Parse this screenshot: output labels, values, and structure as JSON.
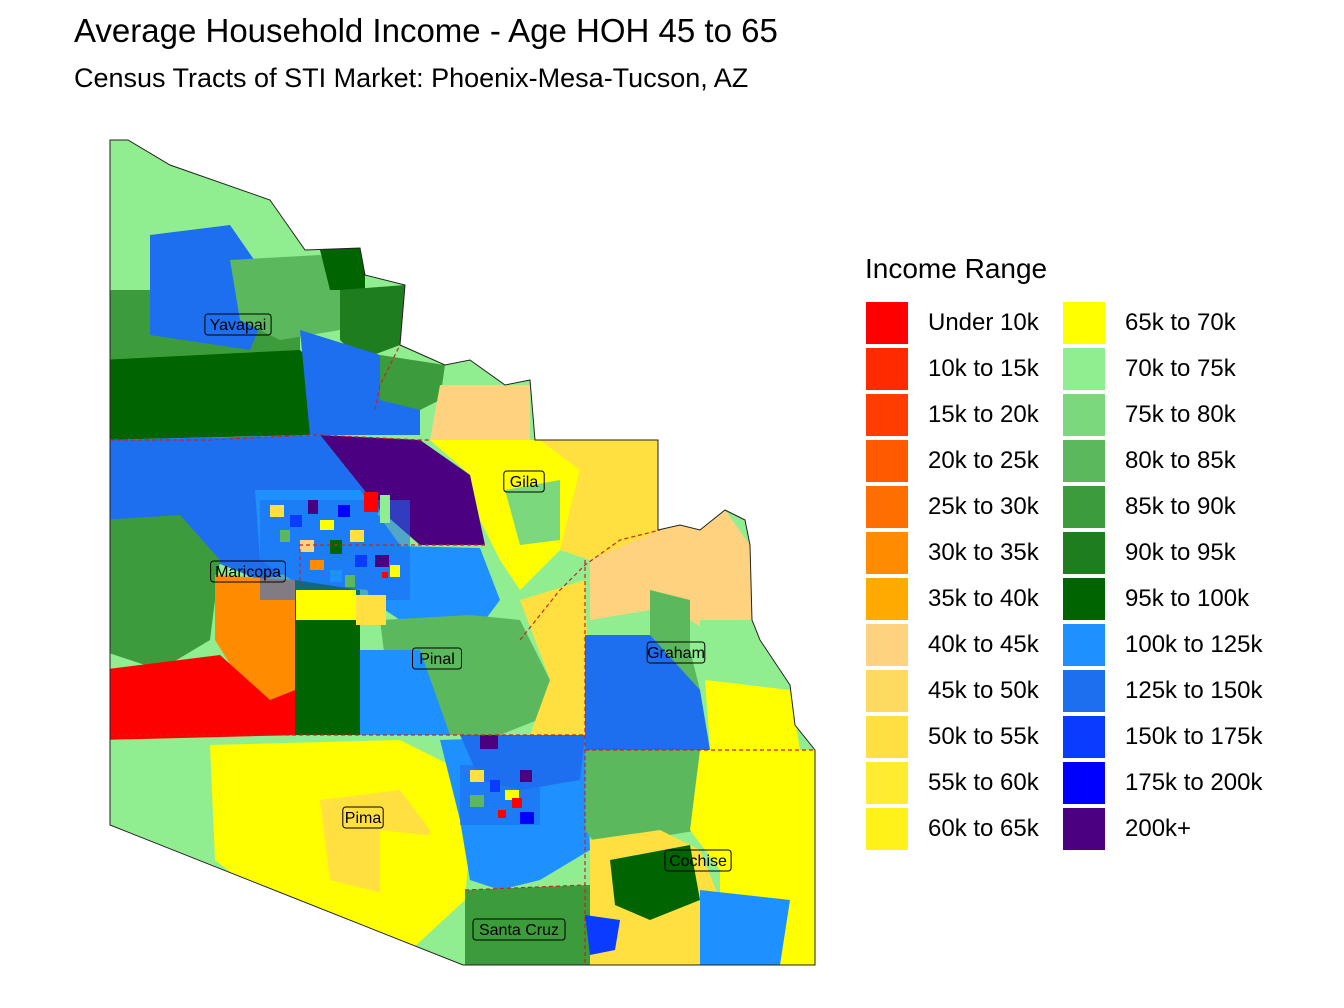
{
  "title": "Average Household Income - Age HOH 45 to 65",
  "subtitle": "Census Tracts of STI Market: Phoenix-Mesa-Tucson, AZ",
  "legend": {
    "title": "Income Range",
    "items": [
      {
        "label": "Under 10k",
        "color": "#FF0000"
      },
      {
        "label": "10k to 15k",
        "color": "#FF2A00"
      },
      {
        "label": "15k to 20k",
        "color": "#FF3D00"
      },
      {
        "label": "20k to 25k",
        "color": "#FF5A00"
      },
      {
        "label": "25k to 30k",
        "color": "#FF6E00"
      },
      {
        "label": "30k to 35k",
        "color": "#FF8C00"
      },
      {
        "label": "35k to 40k",
        "color": "#FFAA00"
      },
      {
        "label": "40k to 45k",
        "color": "#FFD27F"
      },
      {
        "label": "45k to 50k",
        "color": "#FFDA60"
      },
      {
        "label": "50k to 55k",
        "color": "#FFE040"
      },
      {
        "label": "55k to 60k",
        "color": "#FFEB30"
      },
      {
        "label": "60k to 65k",
        "color": "#FFF21A"
      },
      {
        "label": "65k to 70k",
        "color": "#FFFF00"
      },
      {
        "label": "70k to 75k",
        "color": "#90EE90"
      },
      {
        "label": "75k to 80k",
        "color": "#7CD87C"
      },
      {
        "label": "80k to 85k",
        "color": "#5CB85C"
      },
      {
        "label": "85k to 90k",
        "color": "#3C9C3C"
      },
      {
        "label": "90k to 95k",
        "color": "#1E7E1E"
      },
      {
        "label": "95k to 100k",
        "color": "#006400"
      },
      {
        "label": "100k to 125k",
        "color": "#1E90FF"
      },
      {
        "label": "125k to 150k",
        "color": "#1E6EF0"
      },
      {
        "label": "150k to 175k",
        "color": "#0A3CFF"
      },
      {
        "label": "175k to 200k",
        "color": "#0000FF"
      },
      {
        "label": "200k+",
        "color": "#4B0082"
      }
    ]
  },
  "counties": [
    "Yavapai",
    "Maricopa",
    "Gila",
    "Pinal",
    "Graham",
    "Pima",
    "Cochise",
    "Santa Cruz"
  ]
}
